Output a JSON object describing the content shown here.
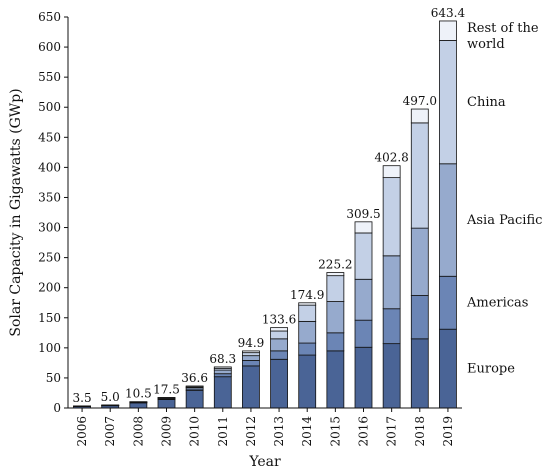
{
  "chart_data": {
    "type": "bar",
    "stacked": true,
    "categories": [
      "2006",
      "2007",
      "2008",
      "2009",
      "2010",
      "2011",
      "2012",
      "2013",
      "2014",
      "2015",
      "2016",
      "2017",
      "2018",
      "2019"
    ],
    "totals": [
      3.5,
      5.0,
      10.5,
      17.5,
      36.6,
      68.3,
      94.9,
      133.6,
      174.9,
      225.2,
      309.5,
      402.8,
      497.0,
      643.4
    ],
    "total_labels": [
      "3.5",
      "5.0",
      "10.5",
      "17.5",
      "36.6",
      "68.3",
      "94.9",
      "133.6",
      "174.9",
      "225.2",
      "309.5",
      "402.8",
      "497.0",
      "643.4"
    ],
    "series": [
      {
        "name": "Europe",
        "values": [
          2.5,
          3.8,
          8.5,
          14.0,
          29.0,
          52.0,
          70.0,
          81.0,
          88.0,
          95.0,
          101.0,
          107.0,
          115.0,
          131.0
        ],
        "color": "#4a6496"
      },
      {
        "name": "Americas",
        "values": [
          0.2,
          0.2,
          0.5,
          1.0,
          2.5,
          5.0,
          9.0,
          14.0,
          20.0,
          30.0,
          45.0,
          58.0,
          72.0,
          88.0
        ],
        "color": "#6b85b5"
      },
      {
        "name": "Asia Pacific",
        "values": [
          0.5,
          0.6,
          0.8,
          1.5,
          2.5,
          6.0,
          8.0,
          20.0,
          36.0,
          52.0,
          68.0,
          88.0,
          112.0,
          187.0
        ],
        "color": "#96aacd"
      },
      {
        "name": "China",
        "values": [
          0.2,
          0.3,
          0.4,
          0.5,
          1.0,
          3.0,
          5.0,
          13.0,
          27.0,
          43.0,
          77.0,
          130.0,
          175.0,
          205.0
        ],
        "color": "#c3d0e6"
      },
      {
        "name": "Rest of the world",
        "values": [
          0.1,
          0.1,
          0.3,
          0.5,
          1.6,
          2.3,
          2.9,
          5.6,
          3.9,
          5.2,
          18.5,
          19.8,
          23.0,
          32.4
        ],
        "color": "#eef2f9"
      }
    ],
    "legend": [
      "Europe",
      "Americas",
      "Asia Pacific",
      "China",
      "Rest of the world"
    ],
    "legend_lines": [
      [
        "Europe"
      ],
      [
        "Americas"
      ],
      [
        "Asia Pacific"
      ],
      [
        "China"
      ],
      [
        "Rest of the",
        "world"
      ]
    ],
    "xlabel": "Year",
    "ylabel": "Solar Capacity in Gigawatts (GWp)",
    "ylim": [
      0,
      650
    ],
    "yticks": [
      0,
      50,
      100,
      150,
      200,
      250,
      300,
      350,
      400,
      450,
      500,
      550,
      600,
      650
    ],
    "grid": false,
    "legend_position": "right"
  }
}
